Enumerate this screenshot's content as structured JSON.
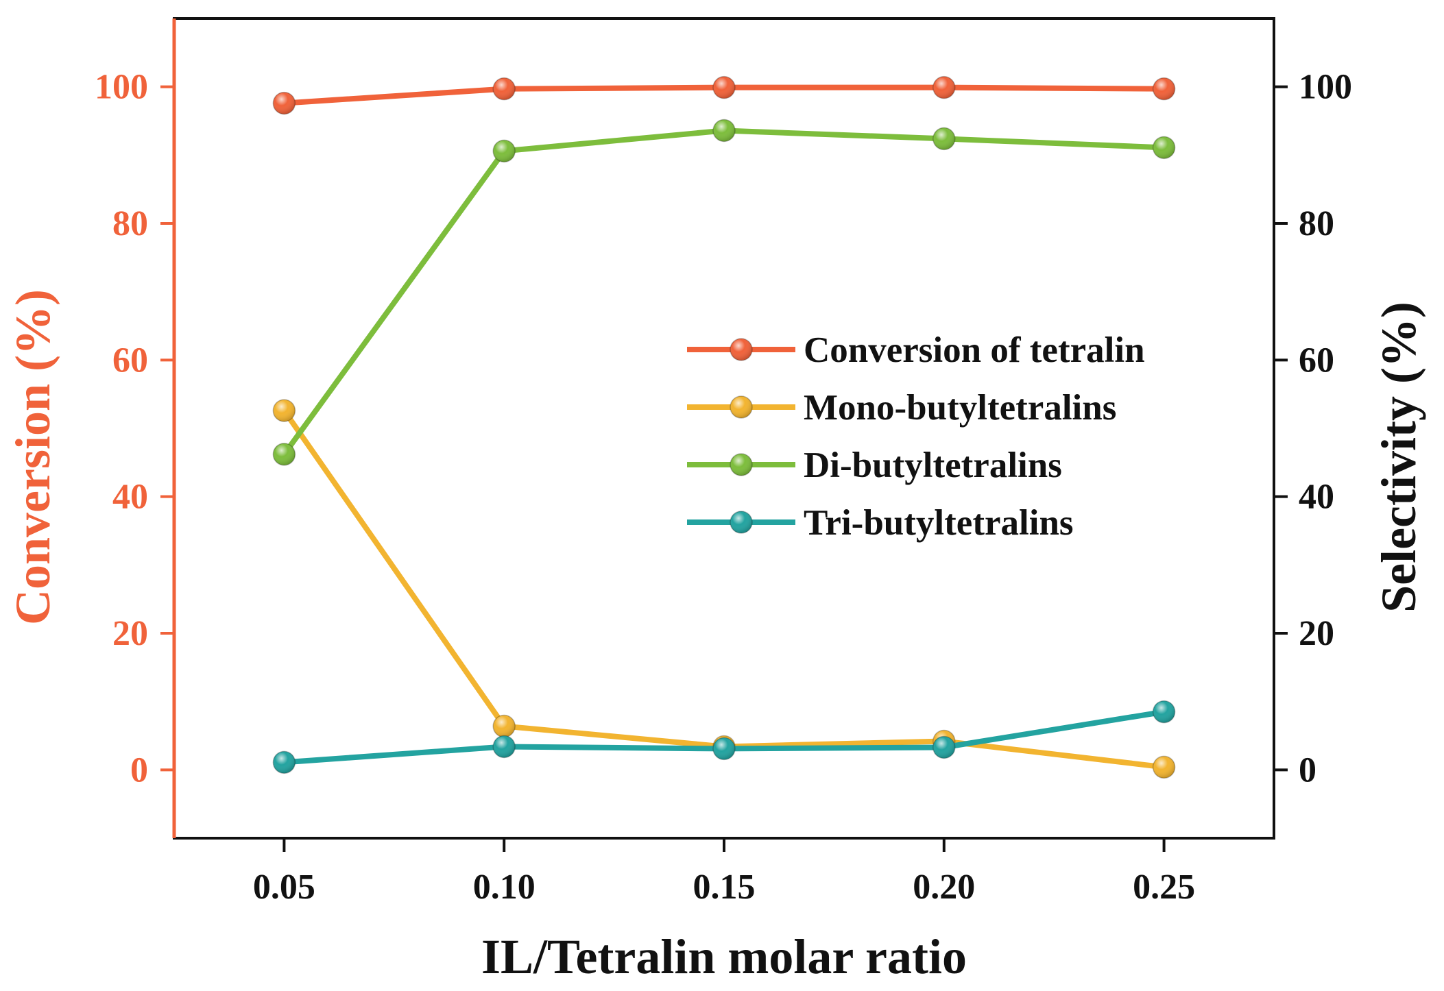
{
  "chart_data": {
    "type": "line",
    "x": [
      0.05,
      0.1,
      0.15,
      0.2,
      0.25
    ],
    "x_tick_labels": [
      "0.05",
      "0.10",
      "0.15",
      "0.20",
      "0.25"
    ],
    "xlabel": "IL/Tetralin molar ratio",
    "xlim": [
      0.025,
      0.275
    ],
    "ylabel_left": "Conversion (%)",
    "ylabel_right": "Selectivity (%)",
    "ylim": [
      -10,
      110
    ],
    "y_tick_labels": [
      "0",
      "20",
      "40",
      "60",
      "80",
      "100"
    ],
    "y_ticks": [
      0,
      20,
      40,
      60,
      80,
      100
    ],
    "legend_position": "center-right",
    "grid": false,
    "series": [
      {
        "name": "Conversion of tetralin",
        "axis": "left",
        "color": "#f0623a",
        "values": [
          97.6,
          99.7,
          99.9,
          99.9,
          99.7
        ]
      },
      {
        "name": "Mono-butyltetralins",
        "axis": "right",
        "color": "#f2b430",
        "values": [
          52.6,
          6.4,
          3.4,
          4.2,
          0.4
        ]
      },
      {
        "name": "Di-butyltetralins",
        "axis": "right",
        "color": "#7dbd3c",
        "values": [
          46.2,
          90.6,
          93.6,
          92.4,
          91.1
        ]
      },
      {
        "name": "Tri-butyltetralins",
        "axis": "right",
        "color": "#23a3a0",
        "values": [
          1.1,
          3.4,
          3.1,
          3.3,
          8.5
        ]
      }
    ],
    "left_axis_color": "#f0623a",
    "right_axis_color": "#111111"
  }
}
